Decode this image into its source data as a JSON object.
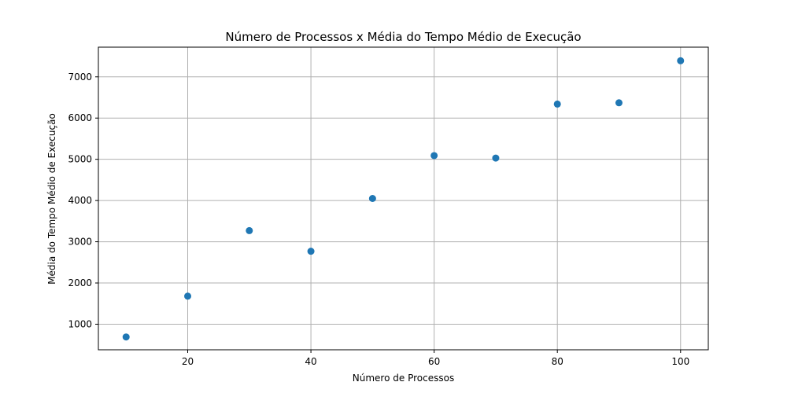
{
  "chart_data": {
    "type": "scatter",
    "title": "Número de Processos x Média do Tempo Médio de Execução",
    "xlabel": "Número de Processos",
    "ylabel": "Média do Tempo Médio de Execução",
    "xlim": [
      5.5,
      104.5
    ],
    "ylim": [
      380,
      7720
    ],
    "xticks": [
      20,
      40,
      60,
      80,
      100
    ],
    "yticks": [
      1000,
      2000,
      3000,
      4000,
      5000,
      6000,
      7000
    ],
    "grid": true,
    "marker_color": "#1f77b4",
    "series": [
      {
        "x": [
          10,
          20,
          30,
          40,
          50,
          60,
          70,
          80,
          90,
          100
        ],
        "y": [
          690,
          1680,
          3270,
          2770,
          4050,
          5090,
          5030,
          6340,
          6370,
          7390
        ]
      }
    ]
  }
}
